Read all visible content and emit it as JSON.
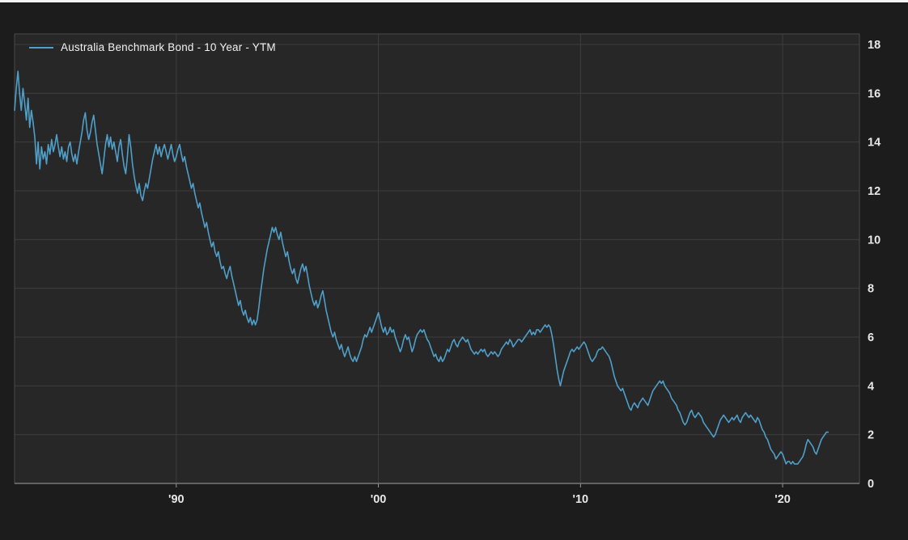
{
  "chart_data": {
    "type": "line",
    "title": "",
    "xlabel": "",
    "ylabel": "",
    "grid": true,
    "legend_position": "top-left",
    "x_range": [
      1982,
      2023.8
    ],
    "y_range": [
      0,
      18
    ],
    "x_ticks": [
      {
        "value": 1990,
        "label": "'90"
      },
      {
        "value": 2000,
        "label": "'00"
      },
      {
        "value": 2010,
        "label": "'10"
      },
      {
        "value": 2020,
        "label": "'20"
      }
    ],
    "y_ticks": [
      {
        "value": 0,
        "label": "0"
      },
      {
        "value": 2,
        "label": "2"
      },
      {
        "value": 4,
        "label": "4"
      },
      {
        "value": 6,
        "label": "6"
      },
      {
        "value": 8,
        "label": "8"
      },
      {
        "value": 10,
        "label": "10"
      },
      {
        "value": 12,
        "label": "12"
      },
      {
        "value": 14,
        "label": "14"
      },
      {
        "value": 16,
        "label": "16"
      },
      {
        "value": 18,
        "label": "18"
      }
    ],
    "colors": {
      "line": "#4f9fc9",
      "plot_background": "#272727",
      "outer_background": "#1c1c1c",
      "grid": "#3e3e3e",
      "frame": "#4a4a4a",
      "axis": "#787878",
      "tick": "#9a9a9a",
      "text": "#e8e8e8"
    },
    "series": [
      {
        "name": "Australia Benchmark Bond - 10 Year - YTM",
        "start_year": 1982.0,
        "step_years": 0.0833333,
        "values": [
          15.3,
          16.2,
          16.9,
          16.0,
          15.3,
          16.2,
          15.6,
          14.9,
          15.8,
          14.6,
          15.3,
          14.8,
          14.2,
          13.1,
          14.0,
          12.9,
          13.8,
          13.3,
          13.6,
          13.1,
          13.9,
          13.5,
          14.1,
          13.6,
          13.9,
          14.3,
          13.8,
          13.4,
          13.8,
          13.3,
          13.6,
          13.2,
          13.8,
          14.0,
          13.5,
          13.2,
          13.5,
          13.1,
          13.6,
          14.0,
          14.4,
          14.9,
          15.2,
          14.5,
          14.1,
          14.4,
          14.8,
          15.1,
          14.5,
          13.9,
          13.5,
          13.1,
          12.7,
          13.3,
          13.9,
          14.3,
          13.8,
          14.2,
          13.7,
          14.0,
          13.6,
          13.2,
          13.8,
          14.1,
          13.5,
          13.0,
          12.7,
          13.4,
          14.3,
          13.8,
          13.1,
          12.6,
          12.2,
          11.9,
          12.3,
          11.8,
          11.6,
          12.0,
          12.3,
          12.1,
          12.5,
          12.9,
          13.3,
          13.6,
          13.9,
          13.5,
          13.8,
          13.4,
          13.7,
          13.9,
          13.6,
          13.3,
          13.6,
          13.9,
          13.5,
          13.2,
          13.4,
          13.7,
          13.9,
          13.5,
          13.2,
          13.4,
          13.0,
          12.7,
          12.4,
          12.1,
          12.3,
          11.9,
          11.6,
          11.3,
          11.5,
          11.1,
          10.8,
          10.5,
          10.7,
          10.3,
          10.0,
          9.7,
          9.9,
          9.5,
          9.3,
          9.5,
          9.1,
          8.8,
          8.9,
          8.6,
          8.4,
          8.7,
          8.9,
          8.5,
          8.2,
          7.9,
          7.6,
          7.3,
          7.5,
          7.1,
          6.9,
          7.1,
          6.8,
          6.6,
          6.8,
          6.5,
          6.7,
          6.5,
          6.7,
          7.2,
          7.8,
          8.3,
          8.8,
          9.2,
          9.6,
          9.9,
          10.2,
          10.5,
          10.3,
          10.5,
          10.2,
          10.0,
          10.3,
          9.9,
          9.6,
          9.3,
          9.5,
          9.1,
          8.8,
          8.6,
          8.8,
          8.4,
          8.2,
          8.5,
          8.8,
          9.0,
          8.7,
          8.9,
          8.5,
          8.1,
          7.8,
          7.5,
          7.3,
          7.5,
          7.2,
          7.4,
          7.7,
          7.9,
          7.5,
          7.1,
          6.8,
          6.5,
          6.2,
          6.0,
          6.2,
          5.9,
          5.7,
          5.5,
          5.7,
          5.4,
          5.2,
          5.4,
          5.6,
          5.3,
          5.1,
          5.0,
          5.2,
          5.0,
          5.2,
          5.4,
          5.6,
          5.9,
          6.1,
          6.0,
          6.2,
          6.4,
          6.2,
          6.4,
          6.6,
          6.8,
          7.0,
          6.7,
          6.4,
          6.2,
          6.4,
          6.1,
          6.2,
          6.4,
          6.2,
          6.3,
          6.0,
          5.8,
          5.6,
          5.4,
          5.6,
          5.9,
          6.1,
          5.9,
          6.0,
          5.7,
          5.4,
          5.6,
          5.9,
          6.1,
          6.2,
          6.3,
          6.2,
          6.3,
          6.1,
          5.9,
          5.8,
          5.6,
          5.4,
          5.2,
          5.3,
          5.1,
          5.0,
          5.2,
          5.0,
          5.1,
          5.3,
          5.5,
          5.4,
          5.6,
          5.8,
          5.9,
          5.7,
          5.6,
          5.8,
          5.9,
          6.0,
          5.9,
          5.8,
          5.9,
          5.7,
          5.5,
          5.4,
          5.3,
          5.4,
          5.3,
          5.4,
          5.5,
          5.4,
          5.5,
          5.3,
          5.2,
          5.3,
          5.4,
          5.3,
          5.4,
          5.3,
          5.2,
          5.3,
          5.5,
          5.6,
          5.7,
          5.8,
          5.7,
          5.9,
          5.8,
          5.6,
          5.7,
          5.8,
          5.9,
          5.9,
          5.8,
          5.9,
          6.0,
          6.1,
          6.2,
          6.3,
          6.1,
          6.2,
          6.1,
          6.3,
          6.3,
          6.2,
          6.3,
          6.4,
          6.5,
          6.4,
          6.5,
          6.4,
          6.1,
          5.7,
          5.2,
          4.7,
          4.3,
          4.0,
          4.3,
          4.6,
          4.8,
          5.0,
          5.2,
          5.4,
          5.5,
          5.4,
          5.5,
          5.6,
          5.5,
          5.6,
          5.7,
          5.8,
          5.7,
          5.5,
          5.3,
          5.1,
          5.0,
          5.1,
          5.2,
          5.4,
          5.5,
          5.5,
          5.6,
          5.5,
          5.4,
          5.3,
          5.2,
          5.0,
          4.7,
          4.4,
          4.2,
          4.0,
          3.9,
          3.8,
          3.9,
          3.7,
          3.5,
          3.3,
          3.1,
          3.0,
          3.2,
          3.3,
          3.2,
          3.1,
          3.3,
          3.4,
          3.5,
          3.4,
          3.3,
          3.2,
          3.4,
          3.6,
          3.8,
          3.9,
          4.0,
          4.1,
          4.2,
          4.1,
          4.2,
          4.0,
          3.9,
          3.8,
          3.7,
          3.5,
          3.4,
          3.3,
          3.2,
          3.0,
          2.9,
          2.7,
          2.5,
          2.4,
          2.5,
          2.7,
          2.9,
          3.0,
          2.8,
          2.7,
          2.8,
          2.9,
          2.8,
          2.7,
          2.5,
          2.4,
          2.3,
          2.2,
          2.1,
          2.0,
          1.9,
          2.0,
          2.2,
          2.4,
          2.6,
          2.7,
          2.8,
          2.7,
          2.6,
          2.5,
          2.6,
          2.7,
          2.6,
          2.7,
          2.8,
          2.6,
          2.5,
          2.7,
          2.8,
          2.9,
          2.8,
          2.7,
          2.8,
          2.7,
          2.6,
          2.5,
          2.7,
          2.6,
          2.4,
          2.2,
          2.1,
          1.9,
          1.8,
          1.6,
          1.4,
          1.3,
          1.2,
          1.0,
          1.1,
          1.2,
          1.3,
          1.2,
          1.0,
          0.8,
          0.9,
          0.9,
          0.8,
          0.9,
          0.8,
          0.8,
          0.8,
          0.9,
          1.0,
          1.1,
          1.3,
          1.6,
          1.8,
          1.7,
          1.6,
          1.5,
          1.3,
          1.2,
          1.4,
          1.6,
          1.8,
          1.9,
          2.0,
          2.1,
          2.1
        ]
      }
    ]
  }
}
